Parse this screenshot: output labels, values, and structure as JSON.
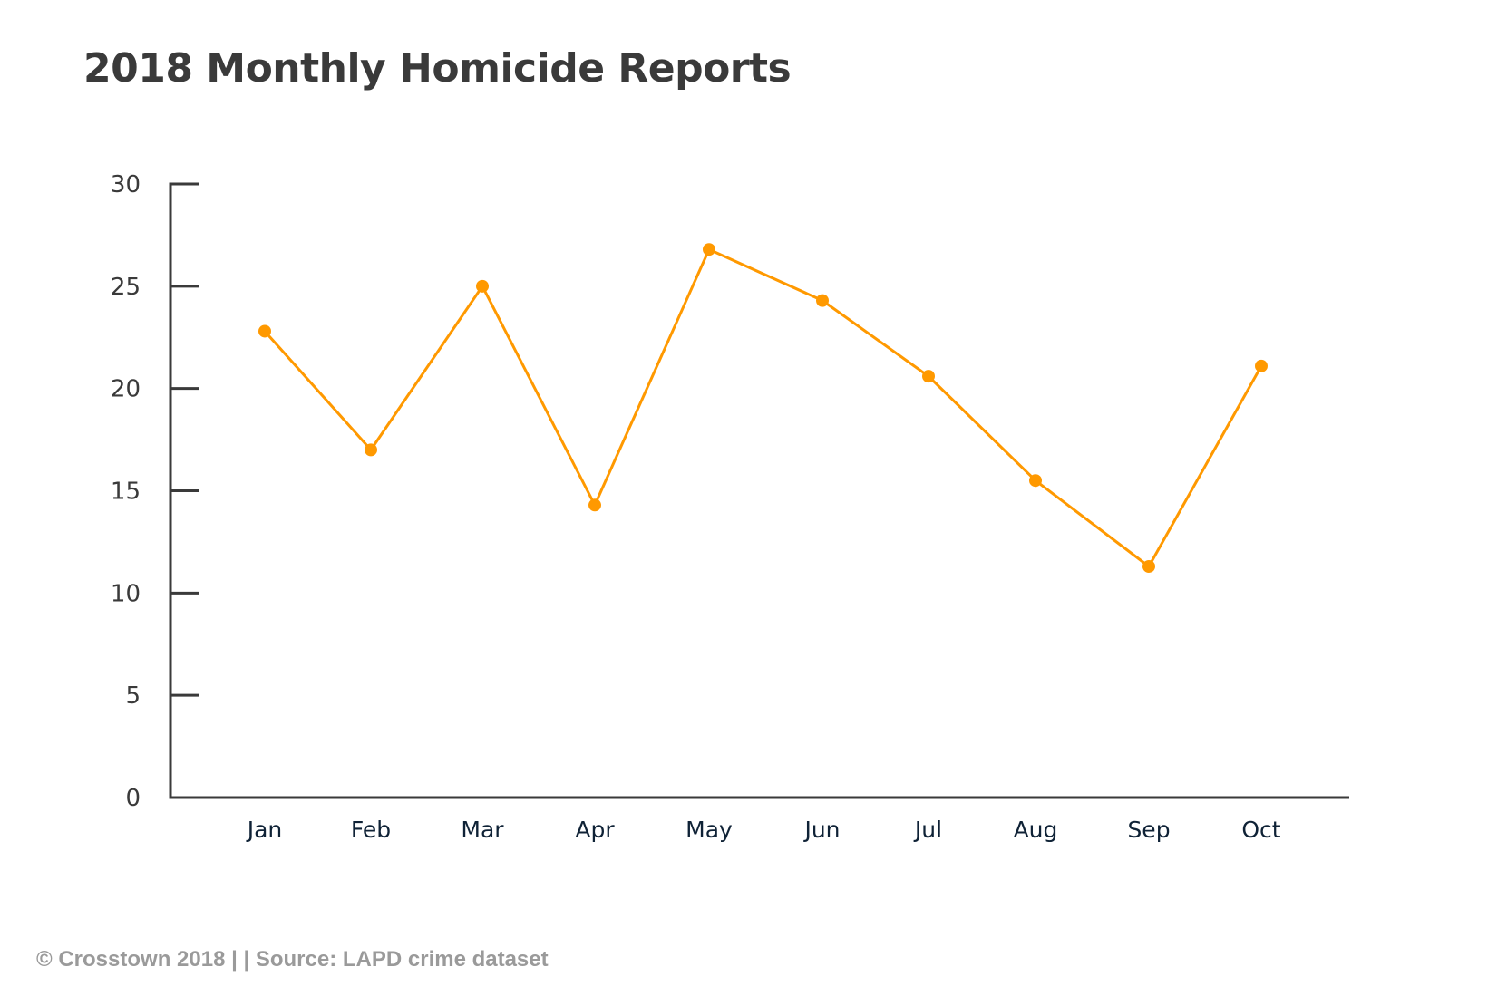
{
  "title": "2018 Monthly Homicide Reports",
  "footer": "© Crosstown 2018 | | Source: LAPD crime dataset",
  "colors": {
    "line": "#FF9900",
    "axis": "#3a3a3a",
    "title": "#3a3a3a",
    "xlabel": "#0f2236",
    "footer": "#9a9a9a"
  },
  "chart_data": {
    "type": "line",
    "title": "2018 Monthly Homicide Reports",
    "xlabel": "",
    "ylabel": "",
    "categories": [
      "Jan",
      "Feb",
      "Mar",
      "Apr",
      "May",
      "Jun",
      "Jul",
      "Aug",
      "Sep",
      "Oct"
    ],
    "series": [
      {
        "name": "Homicide reports",
        "values": [
          22.8,
          17.0,
          25.0,
          14.3,
          26.8,
          24.3,
          20.6,
          15.5,
          11.3,
          21.1
        ]
      }
    ],
    "ylim": [
      0,
      30
    ],
    "yticks": [
      0,
      5,
      10,
      15,
      20,
      25,
      30
    ],
    "grid": false,
    "legend": null,
    "markers": true
  }
}
